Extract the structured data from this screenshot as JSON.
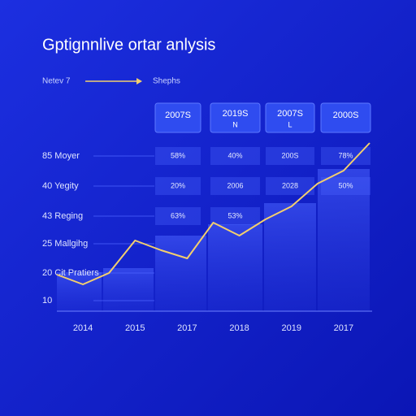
{
  "chart_data": {
    "type": "line",
    "title": "Gptignnlive ortar anlysis",
    "annotations": [
      "Netev 7",
      "Shephs"
    ],
    "table": {
      "headers": [
        [
          "2007S"
        ],
        [
          "2019S",
          "N"
        ],
        [
          "2007S",
          "L"
        ],
        [
          "2000S"
        ]
      ],
      "rows": [
        [
          "58%",
          "40%",
          "200S",
          "78%"
        ],
        [
          "20%",
          "2006",
          "2028",
          "50%"
        ],
        [
          "63%",
          "53%"
        ]
      ]
    },
    "row_labels": [
      "85 Moyer",
      "40 Yegity",
      "43 Reging",
      "25 Mallgihg",
      "20 Cit Pratiers",
      "10"
    ],
    "categories": [
      null,
      "2014",
      null,
      "2015",
      null,
      "2017",
      null,
      "2018",
      null,
      "2019",
      null,
      "2017",
      null
    ],
    "series": [
      {
        "color": "#f3cf6e",
        "values": [
          16,
          10,
          17,
          37,
          31,
          26,
          48,
          40,
          50,
          58,
          72,
          80,
          97
        ]
      }
    ],
    "ylim": [
      0,
      100
    ]
  }
}
